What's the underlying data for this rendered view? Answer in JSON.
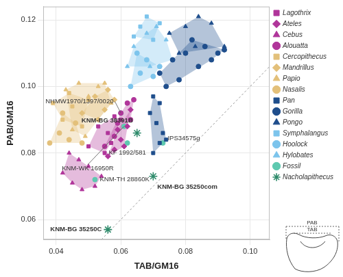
{
  "chart_data": {
    "type": "scatter",
    "x_label": "TAB/GM16",
    "y_label": "PAB/GM16",
    "xlim": [
      0.036,
      0.106
    ],
    "ylim": [
      0.054,
      0.124
    ],
    "xticks": [
      0.04,
      0.06,
      0.08,
      {
        "value": 0.1,
        "label": "0.10"
      }
    ],
    "yticks": [
      0.06,
      0.08,
      {
        "value": 0.1,
        "label": "0.10"
      },
      0.12
    ],
    "grid": true,
    "legend": "right",
    "series": [
      {
        "name": "Lagothrix",
        "type": "hull",
        "color": "#b0359a",
        "marker": "square",
        "values": [
          [
            0.05,
            0.082
          ],
          [
            0.053,
            0.088
          ],
          [
            0.056,
            0.086
          ],
          [
            0.058,
            0.091
          ],
          [
            0.055,
            0.08
          ],
          [
            0.06,
            0.09
          ],
          [
            0.057,
            0.083
          ]
        ]
      },
      {
        "name": "Ateles",
        "type": "hull",
        "color": "#b0359a",
        "marker": "diamond",
        "values": [
          [
            0.056,
            0.079
          ],
          [
            0.058,
            0.081
          ],
          [
            0.06,
            0.084
          ],
          [
            0.062,
            0.088
          ],
          [
            0.063,
            0.093
          ],
          [
            0.059,
            0.087
          ],
          [
            0.061,
            0.082
          ]
        ]
      },
      {
        "name": "Cebus",
        "type": "hull",
        "color": "#b0359a",
        "marker": "triangle",
        "values": [
          [
            0.042,
            0.074
          ],
          [
            0.045,
            0.071
          ],
          [
            0.048,
            0.069
          ],
          [
            0.052,
            0.07
          ],
          [
            0.05,
            0.076
          ],
          [
            0.047,
            0.078
          ],
          [
            0.054,
            0.073
          ],
          [
            0.044,
            0.08
          ]
        ]
      },
      {
        "name": "Alouatta",
        "type": "hull",
        "color": "#b0359a",
        "marker": "circle",
        "values": [
          [
            0.055,
            0.082
          ],
          [
            0.058,
            0.085
          ],
          [
            0.06,
            0.092
          ],
          [
            0.062,
            0.095
          ],
          [
            0.064,
            0.096
          ],
          [
            0.059,
            0.089
          ],
          [
            0.063,
            0.09
          ]
        ]
      },
      {
        "name": "Cercopithecus",
        "type": "hull",
        "color": "#e3c07a",
        "marker": "square",
        "values": [
          [
            0.039,
            0.095
          ],
          [
            0.042,
            0.09
          ],
          [
            0.045,
            0.094
          ],
          [
            0.048,
            0.088
          ],
          [
            0.05,
            0.096
          ],
          [
            0.044,
            0.098
          ]
        ]
      },
      {
        "name": "Mandrillus",
        "type": "hull",
        "color": "#e3c07a",
        "marker": "diamond",
        "values": [
          [
            0.048,
            0.092
          ],
          [
            0.052,
            0.097
          ],
          [
            0.055,
            0.093
          ],
          [
            0.058,
            0.096
          ],
          [
            0.053,
            0.09
          ],
          [
            0.056,
            0.099
          ]
        ]
      },
      {
        "name": "Papio",
        "type": "hull",
        "color": "#e3c07a",
        "marker": "triangle",
        "values": [
          [
            0.043,
            0.099
          ],
          [
            0.047,
            0.101
          ],
          [
            0.05,
            0.097
          ],
          [
            0.053,
            0.1
          ],
          [
            0.057,
            0.095
          ],
          [
            0.045,
            0.087
          ],
          [
            0.049,
            0.085
          ],
          [
            0.055,
            0.101
          ]
        ]
      },
      {
        "name": "Nasalis",
        "type": "hull",
        "color": "#e3c07a",
        "marker": "circle",
        "values": [
          [
            0.038,
            0.083
          ],
          [
            0.041,
            0.086
          ],
          [
            0.044,
            0.084
          ],
          [
            0.046,
            0.089
          ],
          [
            0.042,
            0.092
          ],
          [
            0.048,
            0.083
          ]
        ]
      },
      {
        "name": "Pan",
        "type": "hull",
        "color": "#1f4e8c",
        "marker": "square",
        "values": [
          [
            0.07,
            0.08
          ],
          [
            0.072,
            0.083
          ],
          [
            0.073,
            0.086
          ],
          [
            0.071,
            0.089
          ],
          [
            0.069,
            0.092
          ],
          [
            0.072,
            0.095
          ],
          [
            0.074,
            0.084
          ],
          [
            0.07,
            0.097
          ]
        ]
      },
      {
        "name": "Gorilla",
        "type": "hull",
        "color": "#1f4e8c",
        "marker": "circle",
        "values": [
          [
            0.072,
            0.104
          ],
          [
            0.076,
            0.108
          ],
          [
            0.08,
            0.11
          ],
          [
            0.084,
            0.106
          ],
          [
            0.088,
            0.108
          ],
          [
            0.09,
            0.11
          ],
          [
            0.086,
            0.112
          ],
          [
            0.078,
            0.102
          ],
          [
            0.082,
            0.114
          ],
          [
            0.092,
            0.111
          ],
          [
            0.074,
            0.1
          ]
        ]
      },
      {
        "name": "Pongo",
        "type": "hull",
        "color": "#1f4e8c",
        "marker": "triangle",
        "values": [
          [
            0.075,
            0.116
          ],
          [
            0.08,
            0.118
          ],
          [
            0.084,
            0.121
          ],
          [
            0.088,
            0.119
          ],
          [
            0.083,
            0.112
          ],
          [
            0.078,
            0.11
          ],
          [
            0.092,
            0.112
          ]
        ]
      },
      {
        "name": "Symphalangus",
        "type": "hull",
        "color": "#7cc4ec",
        "marker": "square",
        "values": [
          [
            0.066,
            0.118
          ],
          [
            0.068,
            0.121
          ],
          [
            0.072,
            0.119
          ],
          [
            0.07,
            0.114
          ],
          [
            0.064,
            0.115
          ]
        ]
      },
      {
        "name": "Hoolock",
        "type": "hull",
        "color": "#7cc4ec",
        "marker": "circle",
        "values": [
          [
            0.063,
            0.1
          ],
          [
            0.066,
            0.104
          ],
          [
            0.068,
            0.108
          ],
          [
            0.07,
            0.103
          ],
          [
            0.065,
            0.11
          ],
          [
            0.072,
            0.106
          ]
        ]
      },
      {
        "name": "Hylobates",
        "type": "hull",
        "color": "#7cc4ec",
        "marker": "triangle",
        "values": [
          [
            0.064,
            0.112
          ],
          [
            0.068,
            0.116
          ],
          [
            0.071,
            0.118
          ],
          [
            0.074,
            0.114
          ],
          [
            0.076,
            0.108
          ],
          [
            0.069,
            0.106
          ],
          [
            0.062,
            0.106
          ]
        ]
      },
      {
        "name": "Fossil",
        "type": "scatter",
        "color": "#5ec9b0",
        "marker": "circle",
        "values": [
          [
            0.06,
            0.092
          ],
          [
            0.061,
            0.088
          ],
          [
            0.062,
            0.083
          ],
          [
            0.073,
            0.083
          ],
          [
            0.052,
            0.072
          ]
        ],
        "point_labels": [
          "NHMW1970/1397/0020",
          "KNM-WK 16950R",
          "KF 1992/581",
          "IPS34575g",
          "KNM-TH 28860K"
        ]
      },
      {
        "name": "Nacholapithecus",
        "type": "scatter",
        "color": "#2e8b6b",
        "marker": "star",
        "values": [
          [
            0.065,
            0.086
          ],
          [
            0.07,
            0.073
          ],
          [
            0.056,
            0.057
          ]
        ],
        "point_labels": [
          "KNM-BG 38391B",
          "KNM-BG 35250com",
          "KNM-BG 35250C"
        ]
      }
    ],
    "inset": {
      "labels": [
        "PAB",
        "TAB"
      ]
    }
  }
}
